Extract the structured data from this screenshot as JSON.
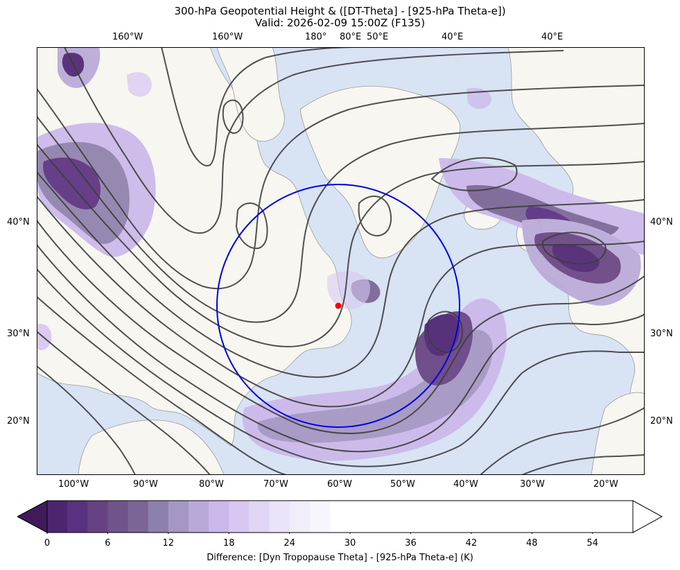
{
  "title": "300-hPa Geopotential Height & ([DT-Theta] - [925-hPa Theta-e])",
  "subtitle": "Valid: 2026-02-09 15:00Z (F135)",
  "top_lon_labels": [
    "160°W",
    "160°W",
    "180°",
    "80°E",
    "50°E",
    "40°E",
    "40°E"
  ],
  "bottom_lon_labels": [
    "100°W",
    "90°W",
    "80°W",
    "70°W",
    "60°W",
    "50°W",
    "40°W",
    "30°W",
    "20°W"
  ],
  "left_lat_labels": [
    "40°N",
    "30°N",
    "20°N"
  ],
  "right_lat_labels": [
    "40°N",
    "30°N",
    "20°N"
  ],
  "colorbar": {
    "ticks": [
      "0",
      "6",
      "12",
      "18",
      "24",
      "30",
      "36",
      "42",
      "48",
      "54"
    ],
    "label": "Difference: [Dyn Tropopause Theta] - [925-hPa Theta-e] (K)",
    "min": 0,
    "max": 58,
    "step": 2,
    "colored_until": 28,
    "extend": "both",
    "under_color": "#3f1b5c",
    "colors": [
      "#4d2470",
      "#5a3080",
      "#674282",
      "#70538a",
      "#7b6596",
      "#8e80ac",
      "#a497c3",
      "#b9a9d8",
      "#cbb8ea",
      "#d8c7f2",
      "#e1d5f6",
      "#eae3f9",
      "#f1edfb",
      "#f7f5fd"
    ]
  },
  "map": {
    "ocean_color": "#d8e3f4",
    "land_color": "#f7f6f1",
    "contour_color": "#3d3d3d",
    "circle_color": "#0000e0",
    "marker_color": "#ff0000"
  }
}
